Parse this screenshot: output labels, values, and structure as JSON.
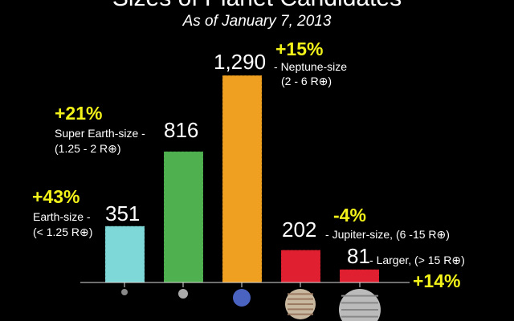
{
  "chart_data": {
    "type": "bar",
    "title": "Sizes of Planet Candidates",
    "subtitle": "As of January 7, 2013",
    "categories": [
      "Earth-size",
      "Super Earth-size",
      "Neptune-size",
      "Jupiter-size",
      "Larger"
    ],
    "ranges": [
      "(< 1.25 R⊕)",
      "(1.25 - 2 R⊕)",
      "(2 - 6 R⊕)",
      "(6 -15 R⊕)",
      "(> 15 R⊕)"
    ],
    "values": [
      351,
      816,
      1290,
      202,
      81
    ],
    "value_labels": [
      "351",
      "816",
      "1,290",
      "202",
      "81"
    ],
    "changes": [
      "+43%",
      "+21%",
      "+15%",
      "-4%",
      "+14%"
    ],
    "colors": [
      "#7fd8d8",
      "#4fb04f",
      "#f0a020",
      "#e02030",
      "#e02030"
    ],
    "grid": false
  }
}
